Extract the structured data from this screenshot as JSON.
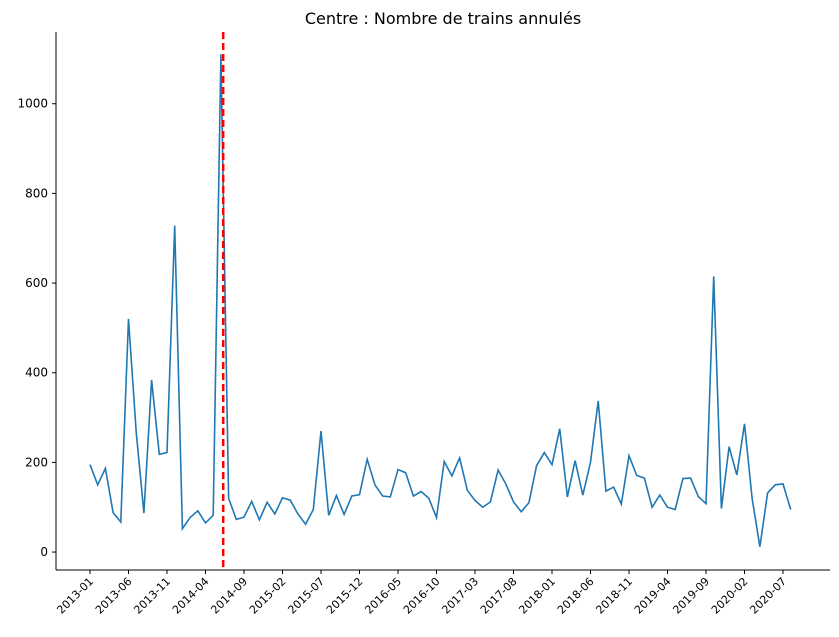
{
  "chart_data": {
    "type": "line",
    "title": "Centre : Nombre de trains annulés",
    "xlabel": "",
    "ylabel": "",
    "ylim": [
      -40,
      1160
    ],
    "yticks": [
      0,
      200,
      400,
      600,
      800,
      1000
    ],
    "xticks": [
      "2013-01",
      "2013-06",
      "2013-11",
      "2014-04",
      "2014-09",
      "2015-02",
      "2015-07",
      "2015-12",
      "2016-05",
      "2016-10",
      "2017-03",
      "2017-08",
      "2018-01",
      "2018-06",
      "2018-11",
      "2019-04",
      "2019-09",
      "2020-02",
      "2020-07"
    ],
    "grid": false,
    "line_color": "#1f77b4",
    "marker_line": {
      "x": "2014-06",
      "color": "#ff0000",
      "style": "dashed"
    },
    "series": [
      {
        "x": [
          "2013-01",
          "2013-02",
          "2013-03",
          "2013-04",
          "2013-05",
          "2013-06",
          "2013-07",
          "2013-08",
          "2013-09",
          "2013-10",
          "2013-11",
          "2013-12",
          "2014-01",
          "2014-02",
          "2014-03",
          "2014-04",
          "2014-05",
          "2014-06",
          "2014-07",
          "2014-08",
          "2014-09",
          "2014-10",
          "2014-11",
          "2014-12",
          "2015-01",
          "2015-02",
          "2015-03",
          "2015-04",
          "2015-05",
          "2015-06",
          "2015-07",
          "2015-08",
          "2015-09",
          "2015-10",
          "2015-11",
          "2015-12",
          "2016-01",
          "2016-02",
          "2016-03",
          "2016-04",
          "2016-05",
          "2016-06",
          "2016-07",
          "2016-08",
          "2016-09",
          "2016-10",
          "2016-11",
          "2016-12",
          "2017-01",
          "2017-02",
          "2017-03",
          "2017-04",
          "2017-05",
          "2017-06",
          "2017-07",
          "2017-08",
          "2017-09",
          "2017-10",
          "2017-11",
          "2017-12",
          "2018-01",
          "2018-02",
          "2018-03",
          "2018-04",
          "2018-05",
          "2018-06",
          "2018-07",
          "2018-08",
          "2018-09",
          "2018-10",
          "2018-11",
          "2018-12",
          "2019-01",
          "2019-02",
          "2019-03",
          "2019-04",
          "2019-05",
          "2019-06",
          "2019-07",
          "2019-08",
          "2019-09",
          "2019-10",
          "2019-11",
          "2019-12",
          "2020-01",
          "2020-02",
          "2020-03",
          "2020-04",
          "2020-05",
          "2020-06",
          "2020-07",
          "2020-08"
        ],
        "values": [
          195,
          150,
          187,
          88,
          67,
          520,
          268,
          87,
          384,
          218,
          222,
          728,
          52,
          77,
          92,
          65,
          82,
          1110,
          120,
          73,
          78,
          113,
          72,
          111,
          85,
          121,
          116,
          85,
          62,
          95,
          270,
          82,
          126,
          84,
          125,
          128,
          207,
          150,
          125,
          123,
          184,
          177,
          125,
          135,
          120,
          77,
          202,
          170,
          210,
          138,
          115,
          100,
          112,
          183,
          152,
          112,
          90,
          110,
          193,
          222,
          195,
          275,
          123,
          204,
          127,
          200,
          337,
          136,
          145,
          107,
          215,
          171,
          165,
          100,
          127,
          100,
          95,
          164,
          165,
          124,
          108,
          615,
          97,
          235,
          172,
          286,
          118,
          12,
          132,
          150,
          152,
          95
        ]
      }
    ]
  }
}
